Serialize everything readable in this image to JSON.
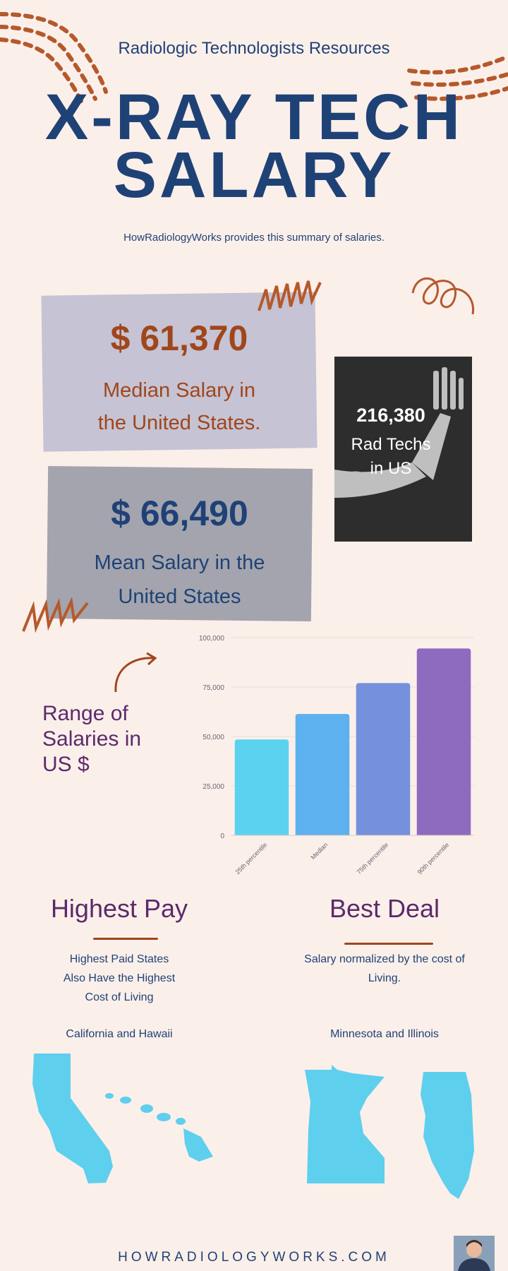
{
  "header": {
    "subtitle": "Radiologic Technologists Resources",
    "title_line1": "X-RAY TECH",
    "title_line2": "SALARY",
    "tagline": "HowRadiologyWorks provides this summary of salaries."
  },
  "median_card": {
    "value": "$ 61,370",
    "line1": "Median Salary in",
    "line2": "the United States."
  },
  "mean_card": {
    "value": "$ 66,490",
    "line1": "Mean Salary in the",
    "line2": "United States"
  },
  "techs_card": {
    "value": "216,380",
    "line1": "Rad Techs",
    "line2": "in US"
  },
  "range_label": {
    "line1": "Range of",
    "line2": "Salaries in",
    "line3": "US $"
  },
  "chart_data": {
    "type": "bar",
    "categories": [
      "25th percentile",
      "Median",
      "75th percentile",
      "90th percentile"
    ],
    "values": [
      48500,
      61370,
      77000,
      94500
    ],
    "colors": [
      "#5bd3f0",
      "#5db1ee",
      "#7590dc",
      "#8e6bbf"
    ],
    "ylim": [
      0,
      100000
    ],
    "yticks": [
      "0",
      "25,000",
      "50,000",
      "75,000",
      "100,000"
    ],
    "grid": true
  },
  "highest_pay": {
    "heading": "Highest Pay",
    "line1": "Highest Paid States",
    "line2": "Also Have the Highest",
    "line3": "Cost of Living",
    "states": "California and Hawaii"
  },
  "best_deal": {
    "heading": "Best Deal",
    "line1": "Salary normalized by the cost of",
    "line2": "Living.",
    "states": "Minnesota and Illinois"
  },
  "footer": {
    "site": "HOWRADIOLOGYWORKS.COM"
  },
  "colors": {
    "background": "#fbefea",
    "navy": "#1f4276",
    "brown": "#a0461c",
    "purple": "#5c2a6b",
    "map": "#5fcfee"
  }
}
